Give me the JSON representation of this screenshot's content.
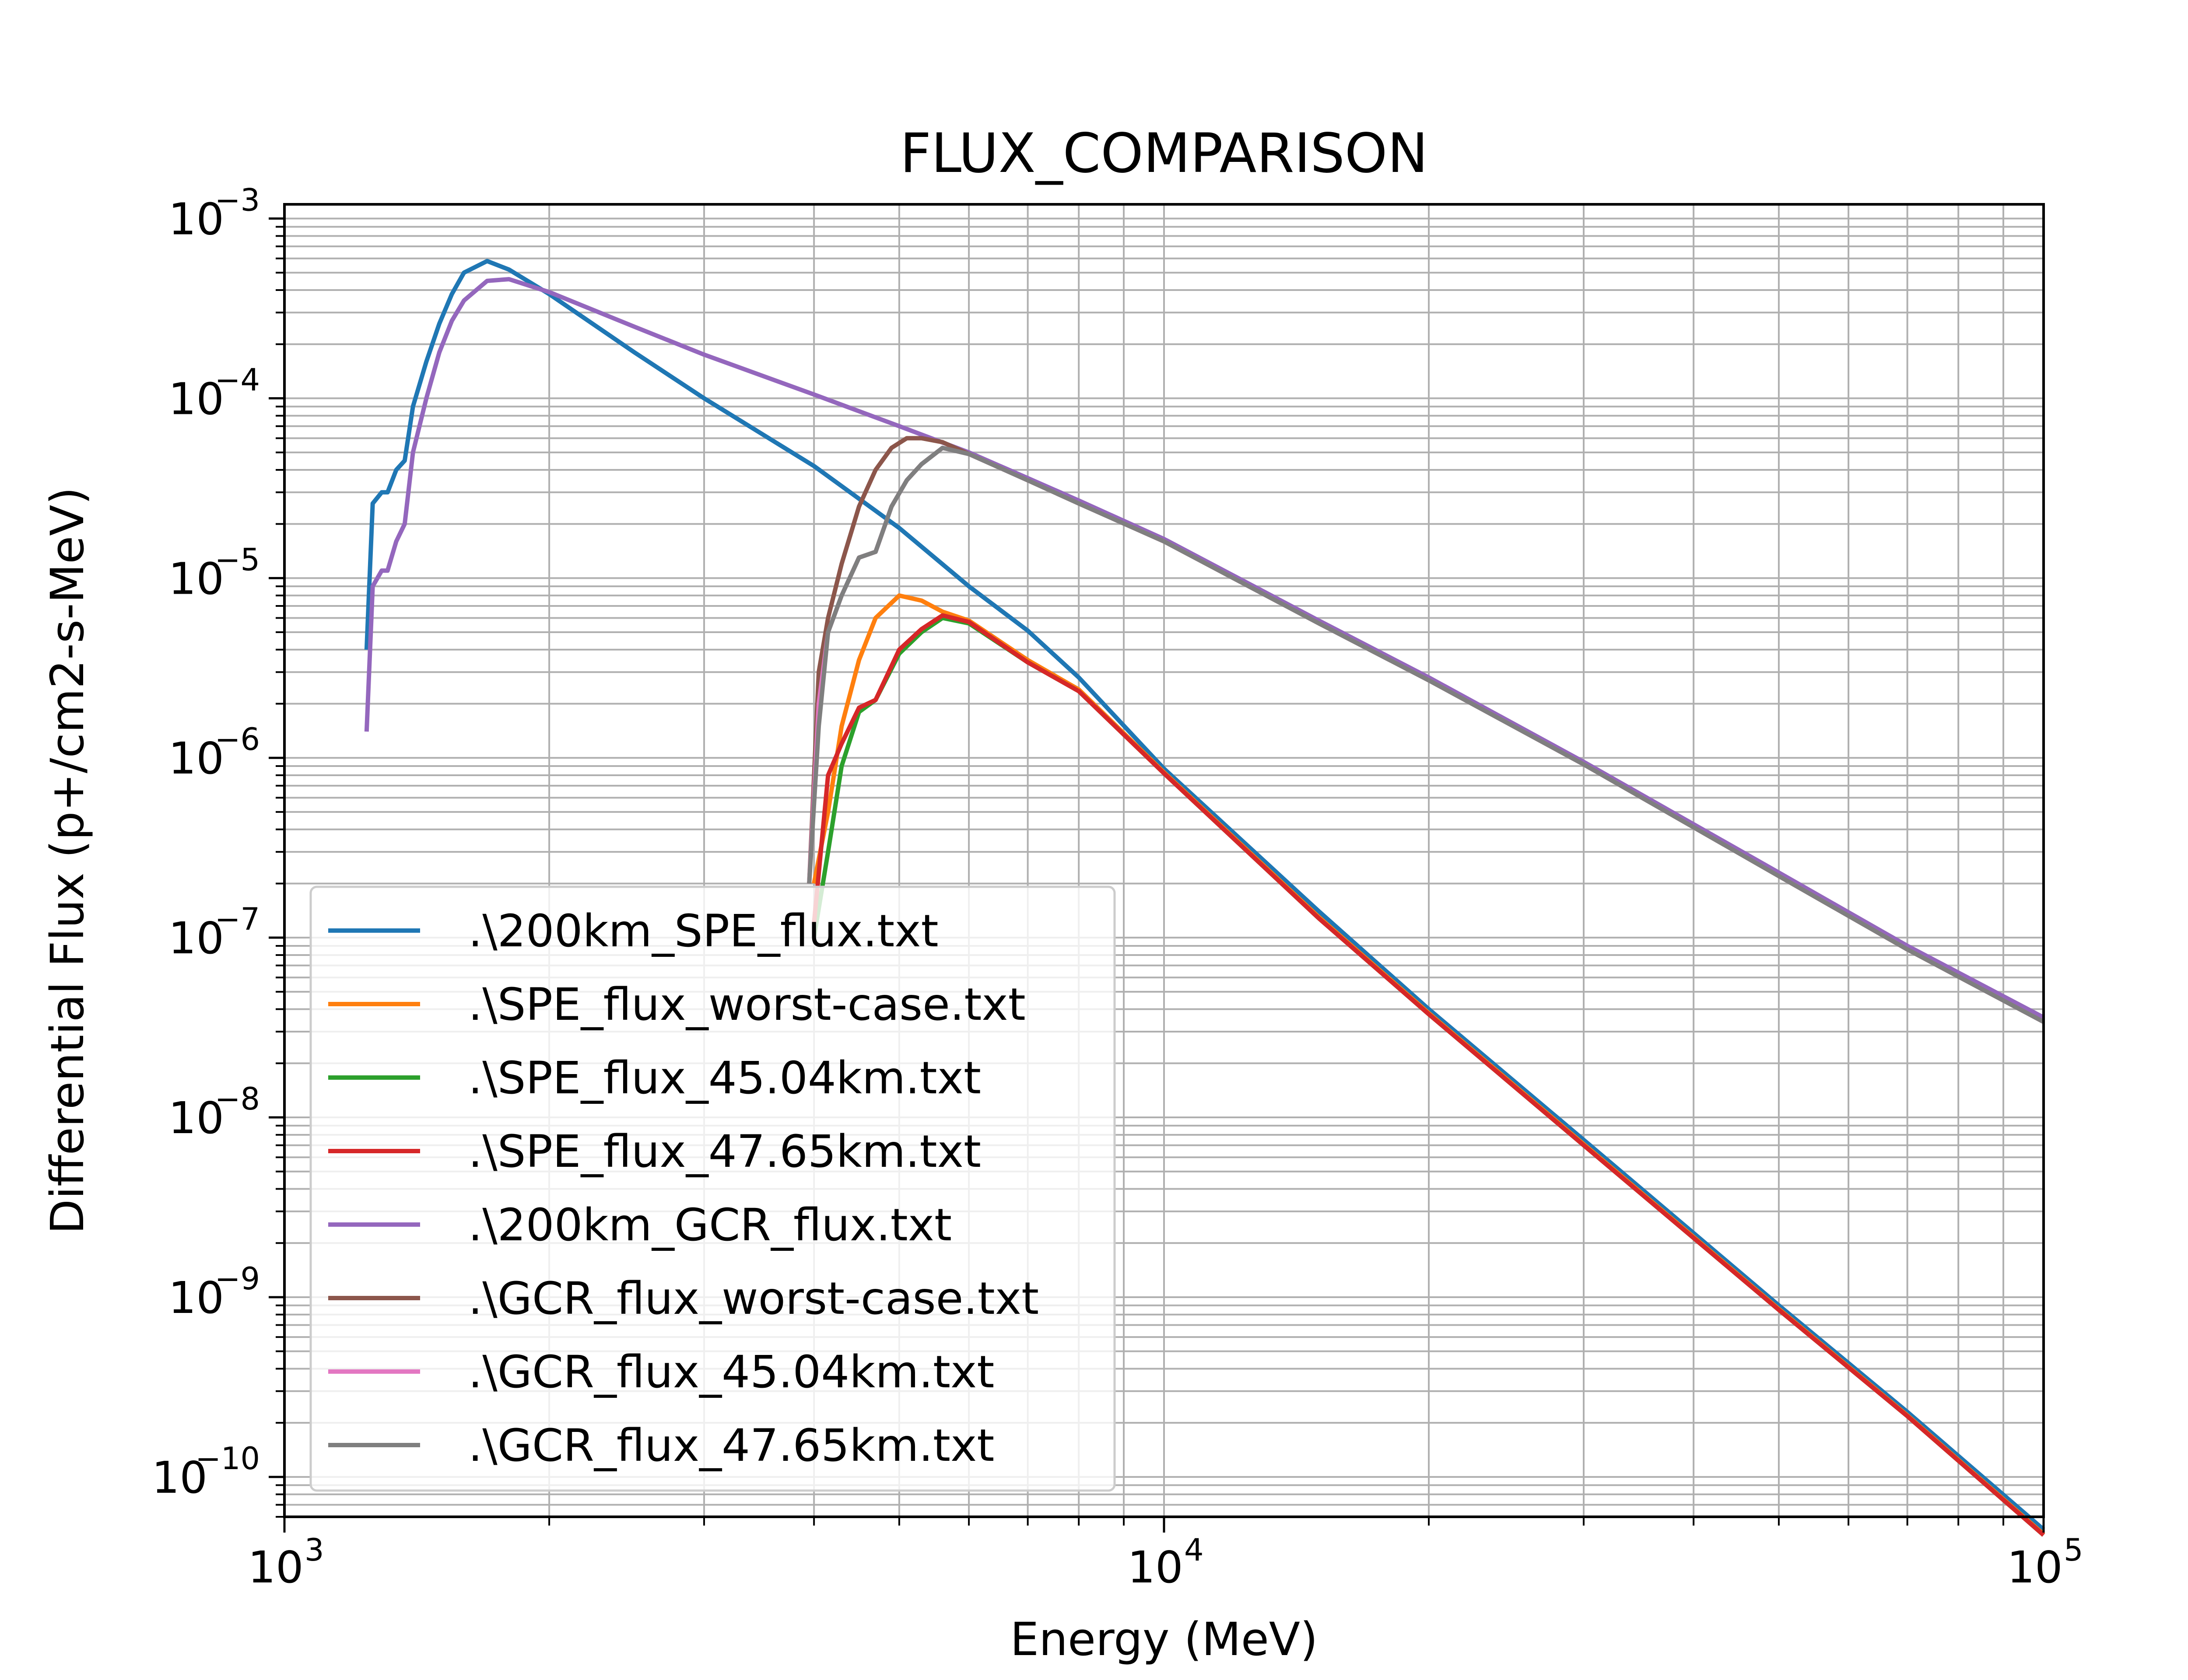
{
  "chart_data": {
    "type": "line",
    "title": "FLUX_COMPARISON",
    "xlabel": "Energy (MeV)",
    "ylabel": "Differential Flux (p+/cm2-s-MeV)",
    "xscale": "log",
    "yscale": "log",
    "xlim": [
      1000,
      100000
    ],
    "ylim": [
      6e-11,
      0.0012
    ],
    "grid": true,
    "grid_minor": true,
    "legend_location": "lower-left",
    "x_major_ticks": [
      1000,
      10000,
      100000
    ],
    "x_tick_labels": [
      {
        "base": "10",
        "exp": "3"
      },
      {
        "base": "10",
        "exp": "4"
      },
      {
        "base": "10",
        "exp": "5"
      }
    ],
    "y_major_ticks": [
      1e-10,
      1e-09,
      1e-08,
      1e-07,
      1e-06,
      1e-05,
      0.0001,
      0.001
    ],
    "y_tick_labels": [
      {
        "base": "10",
        "exp": "−10"
      },
      {
        "base": "10",
        "exp": "−9"
      },
      {
        "base": "10",
        "exp": "−8"
      },
      {
        "base": "10",
        "exp": "−7"
      },
      {
        "base": "10",
        "exp": "−6"
      },
      {
        "base": "10",
        "exp": "−5"
      },
      {
        "base": "10",
        "exp": "−4"
      },
      {
        "base": "10",
        "exp": "−3"
      }
    ],
    "series": [
      {
        "name": ".\\200km_SPE_flux.txt",
        "color": "#1f77b4",
        "x": [
          1240,
          1260,
          1290,
          1310,
          1340,
          1370,
          1400,
          1450,
          1500,
          1550,
          1600,
          1700,
          1800,
          2000,
          2500,
          3000,
          4000,
          5000,
          6000,
          7000,
          8000,
          10000,
          15000,
          20000,
          30000,
          50000,
          70000,
          100000
        ],
        "y": [
          4e-06,
          2.6e-05,
          3e-05,
          3e-05,
          4e-05,
          4.5e-05,
          9e-05,
          0.00016,
          0.00026,
          0.00038,
          0.0005,
          0.00058,
          0.00052,
          0.00038,
          0.00018,
          0.0001,
          4.2e-05,
          1.9e-05,
          9e-06,
          5.1e-06,
          2.8e-06,
          8.7e-07,
          1.4e-07,
          4e-08,
          7.5e-09,
          9e-10,
          2.3e-10,
          5.1e-11
        ]
      },
      {
        "name": ".\\SPE_flux_worst-case.txt",
        "color": "#ff7f0e",
        "x": [
          4000,
          4150,
          4300,
          4500,
          4700,
          5000,
          5300,
          5600,
          6000,
          7000,
          8000,
          10000,
          15000,
          20000,
          30000,
          50000,
          70000,
          100000
        ],
        "y": [
          2e-07,
          5e-07,
          1.5e-06,
          3.5e-06,
          6e-06,
          8e-06,
          7.5e-06,
          6.5e-06,
          5.8e-06,
          3.5e-06,
          2.4e-06,
          8.3e-07,
          1.3e-07,
          3.8e-08,
          7.1e-09,
          8.6e-10,
          2.2e-10,
          4.8e-11
        ]
      },
      {
        "name": ".\\SPE_flux_45.04km.txt",
        "color": "#2ca02c",
        "x": [
          4000,
          4150,
          4300,
          4500,
          4700,
          5000,
          5300,
          5600,
          6000,
          7000,
          8000,
          10000,
          15000,
          20000,
          30000,
          50000,
          70000,
          100000
        ],
        "y": [
          1e-07,
          3e-07,
          9e-07,
          1.8e-06,
          2.1e-06,
          3.8e-06,
          5e-06,
          6e-06,
          5.6e-06,
          3.4e-06,
          2.35e-06,
          8.2e-07,
          1.28e-07,
          3.75e-08,
          7e-09,
          8.5e-10,
          2.18e-10,
          4.75e-11
        ]
      },
      {
        "name": ".\\SPE_flux_47.65km.txt",
        "color": "#d62728",
        "x": [
          4000,
          4150,
          4300,
          4500,
          4700,
          5000,
          5300,
          5600,
          6000,
          7000,
          8000,
          10000,
          15000,
          20000,
          30000,
          50000,
          70000,
          100000
        ],
        "y": [
          1.2e-07,
          8e-07,
          1.2e-06,
          1.9e-06,
          2.1e-06,
          4e-06,
          5.2e-06,
          6.2e-06,
          5.7e-06,
          3.4e-06,
          2.35e-06,
          8.2e-07,
          1.28e-07,
          3.75e-08,
          7e-09,
          8.5e-10,
          2.18e-10,
          4.75e-11
        ]
      },
      {
        "name": ".\\200km_GCR_flux.txt",
        "color": "#9467bd",
        "x": [
          1240,
          1260,
          1290,
          1310,
          1340,
          1370,
          1400,
          1450,
          1500,
          1550,
          1600,
          1700,
          1800,
          2000,
          2500,
          3000,
          4000,
          5000,
          6000,
          7000,
          8000,
          10000,
          15000,
          20000,
          30000,
          50000,
          70000,
          100000
        ],
        "y": [
          1.4e-06,
          9e-06,
          1.1e-05,
          1.1e-05,
          1.6e-05,
          2e-05,
          5e-05,
          0.0001,
          0.00018,
          0.00027,
          0.00035,
          0.00045,
          0.00046,
          0.00039,
          0.00025,
          0.000175,
          0.000105,
          7e-05,
          5e-05,
          3.6e-05,
          2.7e-05,
          1.65e-05,
          5.8e-06,
          2.8e-06,
          9.5e-07,
          2.3e-07,
          9e-08,
          3.6e-08
        ]
      },
      {
        "name": ".\\GCR_flux_worst-case.txt",
        "color": "#8c564b",
        "x": [
          3950,
          4050,
          4150,
          4300,
          4500,
          4700,
          4900,
          5100,
          5300,
          5600,
          6000,
          7000,
          8000,
          10000,
          15000,
          20000,
          30000,
          50000,
          70000,
          100000
        ],
        "y": [
          2e-07,
          3e-06,
          6e-06,
          1.2e-05,
          2.5e-05,
          4e-05,
          5.3e-05,
          6e-05,
          6e-05,
          5.7e-05,
          4.9e-05,
          3.5e-05,
          2.6e-05,
          1.6e-05,
          5.6e-06,
          2.7e-06,
          9.2e-07,
          2.2e-07,
          8.6e-08,
          3.4e-08
        ]
      },
      {
        "name": ".\\GCR_flux_45.04km.txt",
        "color": "#e377c2",
        "x": [
          3950,
          4050,
          4150,
          4300,
          4500,
          4700,
          4900,
          5100,
          5300,
          5600,
          6000,
          7000,
          8000,
          10000,
          15000,
          20000,
          30000,
          50000,
          70000,
          100000
        ],
        "y": [
          2e-07,
          2e-06,
          5e-06,
          8e-06,
          1.3e-05,
          1.4e-05,
          2.5e-05,
          3.5e-05,
          4.3e-05,
          5.3e-05,
          4.9e-05,
          3.5e-05,
          2.6e-05,
          1.6e-05,
          5.6e-06,
          2.7e-06,
          9.2e-07,
          2.2e-07,
          8.6e-08,
          3.4e-08
        ]
      },
      {
        "name": ".\\GCR_flux_47.65km.txt",
        "color": "#7f7f7f",
        "x": [
          3950,
          4050,
          4150,
          4300,
          4500,
          4700,
          4900,
          5100,
          5300,
          5600,
          6000,
          7000,
          8000,
          10000,
          15000,
          20000,
          30000,
          50000,
          70000,
          100000
        ],
        "y": [
          2e-07,
          1.5e-06,
          5e-06,
          8e-06,
          1.3e-05,
          1.4e-05,
          2.5e-05,
          3.5e-05,
          4.3e-05,
          5.3e-05,
          4.9e-05,
          3.5e-05,
          2.6e-05,
          1.6e-05,
          5.6e-06,
          2.7e-06,
          9.2e-07,
          2.2e-07,
          8.6e-08,
          3.4e-08
        ]
      }
    ]
  }
}
